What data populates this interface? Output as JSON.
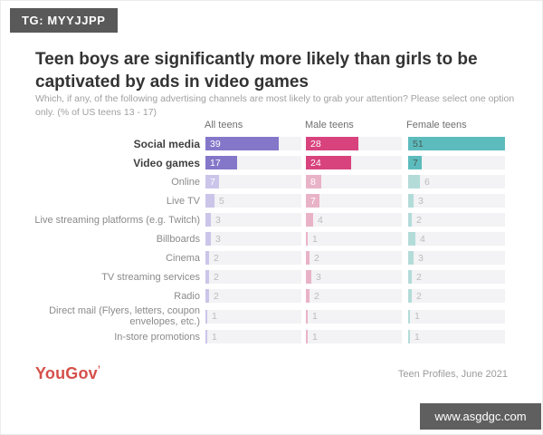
{
  "tag": "TG: MYYJJPP",
  "title": "Teen boys are significantly more likely than girls to be captivated by ads in video games",
  "subtitle": "Which, if any, of the following advertising channels are most likely to grab your attention? Please select one option only. (% of US teens 13 - 17)",
  "footer": {
    "logo": "YouGov",
    "source": "Teen Profiles, June 2021"
  },
  "watermark": "www.asgdgc.com",
  "chart_data": {
    "type": "bar",
    "orientation": "horizontal",
    "columns": [
      "All teens",
      "Male teens",
      "Female teens"
    ],
    "categories": [
      "Social media",
      "Video games",
      "Online",
      "Live TV",
      "Live streaming platforms (e.g. Twitch)",
      "Billboards",
      "Cinema",
      "TV streaming services",
      "Radio",
      "Direct mail (Flyers, letters, coupon envelopes, etc.)",
      "In-store promotions"
    ],
    "series": [
      {
        "name": "All teens",
        "values": [
          39,
          17,
          7,
          5,
          3,
          3,
          2,
          2,
          2,
          1,
          1
        ]
      },
      {
        "name": "Male teens",
        "values": [
          28,
          24,
          8,
          7,
          4,
          1,
          2,
          3,
          2,
          1,
          1
        ]
      },
      {
        "name": "Female teens",
        "values": [
          51,
          7,
          6,
          3,
          2,
          4,
          3,
          2,
          2,
          1,
          1
        ]
      }
    ],
    "highlighted_rows": [
      0,
      1
    ],
    "xmax": 51,
    "grid": false,
    "value_labels": true
  },
  "colors": {
    "all_teens": "#8477c9",
    "all_teens_muted": "#cbc5ea",
    "male_teens": "#d8437e",
    "male_teens_muted": "#e9b3c7",
    "female_teens": "#5cbcbd",
    "female_teens_muted": "#b3dcd9",
    "track": "#f3f2f4",
    "label_inside_light": "#ffffff",
    "label_inside_dark": "#4b5a58",
    "label_outside": "#bcbcbc"
  }
}
